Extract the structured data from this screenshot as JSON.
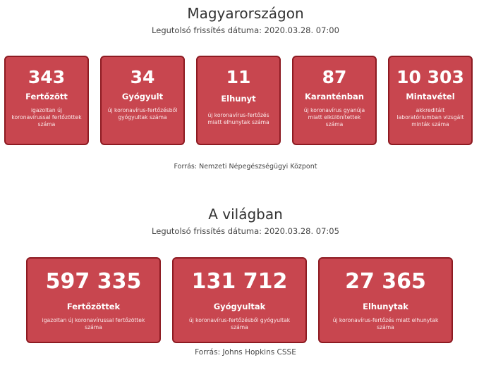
{
  "hungary": {
    "title": "Magyarországon",
    "updated": "Legutolsó frissítés dátuma: 2020.03.28. 07:00",
    "cards": [
      {
        "value": "343",
        "label": "Fertőzött",
        "desc": "igazoltan új koronavírussal fertőzöttek száma"
      },
      {
        "value": "34",
        "label": "Gyógyult",
        "desc": "új koronavírus-fertőzésből gyógyultak száma"
      },
      {
        "value": "11",
        "label": "Elhunyt",
        "desc": "új koronavírus-fertőzés miatt elhunytak száma"
      },
      {
        "value": "87",
        "label": "Karanténban",
        "desc": "új koronavírus gyanúja miatt elkülönítettek száma"
      },
      {
        "value": "10 303",
        "label": "Mintavétel",
        "desc": "akkreditált laboratóriumban vizsgált minták száma"
      }
    ],
    "source": "Forrás: Nemzeti Népegészségügyi Központ"
  },
  "world": {
    "title": "A világban",
    "updated": "Legutolsó frissítés dátuma: 2020.03.28. 07:05",
    "cards": [
      {
        "value": "597 335",
        "label": "Fertőzöttek",
        "desc": "igazoltan új koronavírussal fertőzöttek száma"
      },
      {
        "value": "131 712",
        "label": "Gyógyultak",
        "desc": "új koronavírus-fertőzésből gyógyultak száma"
      },
      {
        "value": "27 365",
        "label": "Elhunytak",
        "desc": "új koronavírus-fertőzés miatt elhunytak száma"
      }
    ],
    "source": "Forrás: Johns Hopkins CSSE"
  },
  "colors": {
    "card_bg": "#c8464f",
    "card_border": "#8d1b22"
  }
}
